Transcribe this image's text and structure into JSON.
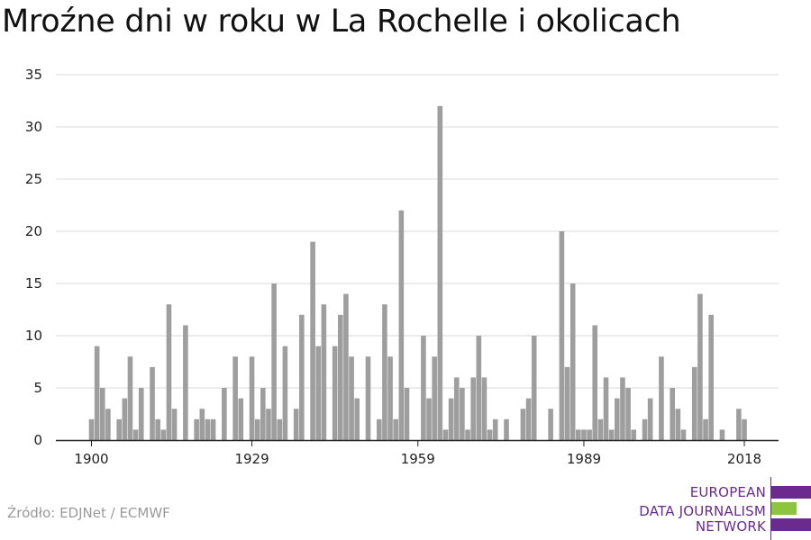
{
  "title": "Mroźne dni w roku w La Rochelle i okolicach",
  "source": "Źródło: EDJNet / ECMWF",
  "logo": {
    "lines": [
      "EUROPEAN",
      "DATA JOURNALISM",
      "NETWORK"
    ],
    "colors": {
      "purple": "#6a2a8e",
      "green": "#8cc63f"
    }
  },
  "colors": {
    "bar": "#9e9e9e",
    "grid": "#d9d9d9",
    "axis": "#222222"
  },
  "chart_data": {
    "type": "bar",
    "title": "Mroźne dni w roku w La Rochelle i okolicach",
    "xlabel": "",
    "ylabel": "",
    "ylim": [
      0,
      35
    ],
    "yticks": [
      0,
      5,
      10,
      15,
      20,
      25,
      30,
      35
    ],
    "xticks": [
      1900,
      1929,
      1959,
      1989,
      2018
    ],
    "grid": true,
    "categories": [
      1900,
      1901,
      1902,
      1903,
      1904,
      1905,
      1906,
      1907,
      1908,
      1909,
      1910,
      1911,
      1912,
      1913,
      1914,
      1915,
      1916,
      1917,
      1918,
      1919,
      1920,
      1921,
      1922,
      1923,
      1924,
      1925,
      1926,
      1927,
      1928,
      1929,
      1930,
      1931,
      1932,
      1933,
      1934,
      1935,
      1936,
      1937,
      1938,
      1939,
      1940,
      1941,
      1942,
      1943,
      1944,
      1945,
      1946,
      1947,
      1948,
      1949,
      1950,
      1951,
      1952,
      1953,
      1954,
      1955,
      1956,
      1957,
      1958,
      1959,
      1960,
      1961,
      1962,
      1963,
      1964,
      1965,
      1966,
      1967,
      1968,
      1969,
      1970,
      1971,
      1972,
      1973,
      1974,
      1975,
      1976,
      1977,
      1978,
      1979,
      1980,
      1981,
      1982,
      1983,
      1984,
      1985,
      1986,
      1987,
      1988,
      1989,
      1990,
      1991,
      1992,
      1993,
      1994,
      1995,
      1996,
      1997,
      1998,
      1999,
      2000,
      2001,
      2002,
      2003,
      2004,
      2005,
      2006,
      2007,
      2008,
      2009,
      2010,
      2011,
      2012,
      2013,
      2014,
      2015,
      2016,
      2017,
      2018,
      2019
    ],
    "values": [
      2,
      9,
      5,
      3,
      0,
      2,
      4,
      8,
      1,
      5,
      0,
      7,
      2,
      1,
      13,
      3,
      0,
      11,
      0,
      2,
      3,
      2,
      2,
      0,
      5,
      0,
      8,
      4,
      0,
      8,
      2,
      5,
      3,
      15,
      2,
      9,
      0,
      3,
      12,
      0,
      19,
      9,
      13,
      0,
      9,
      12,
      14,
      8,
      4,
      0,
      8,
      0,
      2,
      13,
      8,
      2,
      22,
      5,
      0,
      0,
      10,
      4,
      8,
      32,
      1,
      4,
      6,
      5,
      1,
      6,
      10,
      6,
      1,
      2,
      0,
      2,
      0,
      0,
      3,
      4,
      10,
      0,
      0,
      3,
      0,
      20,
      7,
      15,
      1,
      1,
      1,
      11,
      2,
      6,
      1,
      4,
      6,
      5,
      1,
      0,
      2,
      4,
      0,
      8,
      0,
      5,
      3,
      1,
      0,
      7,
      14,
      2,
      12,
      0,
      1,
      0,
      0,
      3,
      2,
      0
    ]
  }
}
